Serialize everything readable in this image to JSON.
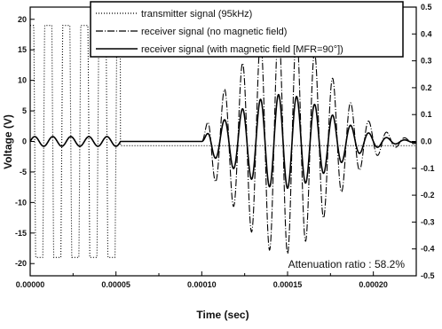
{
  "chart_data": {
    "type": "line",
    "xlabel": "Time (sec)",
    "ylabel": "Voltage (V)",
    "xlim": [
      0,
      0.000225
    ],
    "ylim": [
      -22,
      22
    ],
    "ylim_right": [
      -0.5,
      0.5
    ],
    "x_ticks": [
      0,
      5e-05,
      0.0001,
      0.00015,
      0.0002
    ],
    "x_tick_labels": [
      "0.00000",
      "0.00005",
      "0.00010",
      "0.00015",
      "0.00020"
    ],
    "y_ticks": [
      -20,
      -15,
      -10,
      -5,
      0,
      5,
      10,
      15,
      20
    ],
    "y_tick_labels": [
      "-20",
      "-15",
      "-10",
      "-5",
      "0",
      "5",
      "10",
      "15",
      "20"
    ],
    "y_right_ticks": [
      -0.5,
      -0.4,
      -0.3,
      -0.2,
      -0.1,
      0.0,
      0.1,
      0.2,
      0.3,
      0.4,
      0.5
    ],
    "y_right_tick_labels": [
      "-0.5",
      "-0.4",
      "-0.3",
      "-0.2",
      "-0.1",
      "0.0",
      "0.1",
      "0.2",
      "0.3",
      "0.4",
      "0.5"
    ],
    "grid": false,
    "legend_position": "top",
    "annotation": "Attenuation ratio : 58.2%",
    "series": [
      {
        "name": "transmitter signal (95kHz)",
        "style": "dotted",
        "axis": "left",
        "frequency_hz": 95000,
        "x_start": 0.0,
        "x_end": 5.25e-05,
        "amplitude": 19,
        "after_value": -0.7,
        "note": "square burst"
      },
      {
        "name": "receiver signal (no magnetic field)",
        "style": "dashdot",
        "axis": "right",
        "frequency_hz": 95000,
        "crosstalk": {
          "x_start": 0.0,
          "x_end": 5.25e-05,
          "amplitude": 0.018
        },
        "burst": {
          "x_start": 0.0001,
          "x_end": 0.000225,
          "peak_time": 0.000147,
          "peak_amplitude": 0.42
        }
      },
      {
        "name": "receiver signal (with magnetic field [MFR=90°])",
        "style": "solid",
        "axis": "right",
        "frequency_hz": 95000,
        "crosstalk": {
          "x_start": 0.0,
          "x_end": 5.25e-05,
          "amplitude": 0.018
        },
        "burst": {
          "x_start": 0.0001,
          "x_end": 0.000225,
          "peak_time": 0.000147,
          "peak_amplitude": 0.175
        }
      }
    ]
  }
}
